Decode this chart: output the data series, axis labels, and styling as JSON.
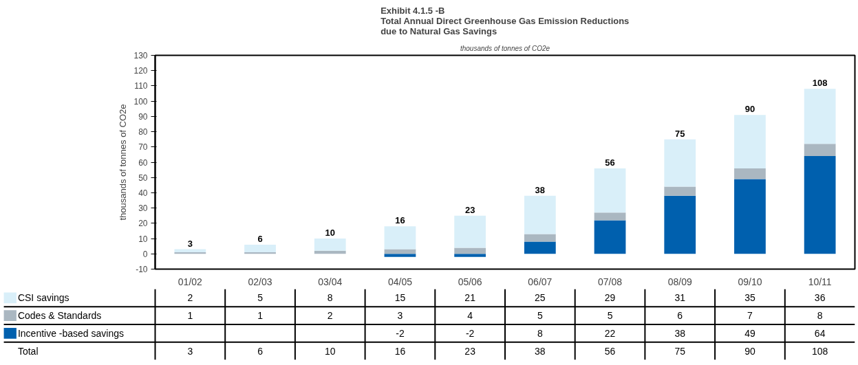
{
  "chart_data": {
    "type": "bar",
    "stacked": true,
    "title": "Exhibit 4.1.5 -B\nTotal Annual Direct Greenhouse Gas Emission Reductions\ndue to Natural Gas Savings",
    "subtitle": "thousands of tonnes of CO2e",
    "ylabel": "thousands of tonnes of CO2e",
    "categories": [
      "01/02",
      "02/03",
      "03/04",
      "04/05",
      "05/06",
      "06/07",
      "07/08",
      "08/09",
      "09/10",
      "10/11"
    ],
    "series": [
      {
        "name": "Incentive -based savings",
        "color": "#0060ae",
        "values": [
          null,
          null,
          null,
          -2,
          -2,
          8,
          22,
          38,
          49,
          64
        ]
      },
      {
        "name": "Codes & Standards",
        "color": "#aab7c1",
        "values": [
          1,
          1,
          2,
          3,
          4,
          5,
          5,
          6,
          7,
          8
        ]
      },
      {
        "name": "CSI savings",
        "color": "#d9eff9",
        "values": [
          2,
          5,
          8,
          15,
          21,
          25,
          29,
          31,
          35,
          36
        ]
      }
    ],
    "totals": [
      "3",
      "6",
      "10",
      "16",
      "23",
      "38",
      "56",
      "75",
      "90",
      "108"
    ],
    "annotations": [
      "Total"
    ],
    "data_labels": true,
    "legend": "bottom",
    "ylim": [
      -10,
      130
    ],
    "yticks": [
      -10,
      0,
      10,
      20,
      30,
      40,
      50,
      60,
      70,
      80,
      90,
      100,
      110,
      120,
      130
    ]
  }
}
